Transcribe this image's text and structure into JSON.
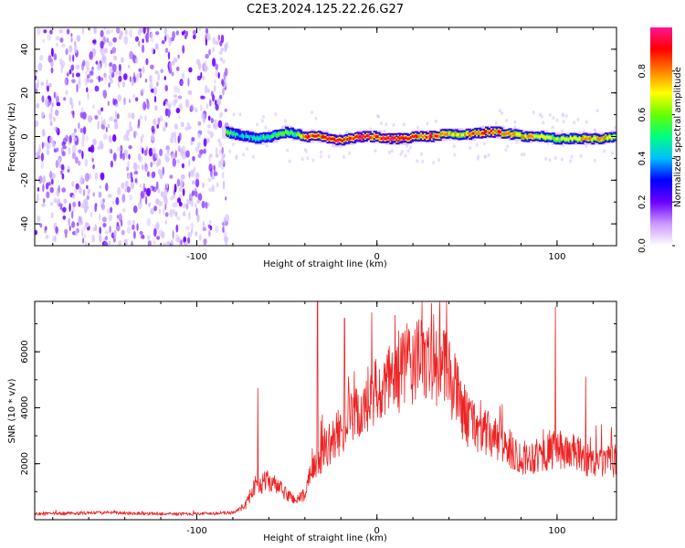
{
  "title": "C2E3.2024.125.22.26.G27",
  "chart_data": [
    {
      "type": "heatmap",
      "name": "spectrogram",
      "xlabel": "Height of straight line (km)",
      "ylabel": "Frequency (Hz)",
      "xlim": [
        -190,
        133
      ],
      "ylim": [
        -50,
        50
      ],
      "x_ticks": [
        -100,
        0,
        100
      ],
      "y_ticks": [
        -40,
        -20,
        0,
        20,
        40
      ],
      "grid": false,
      "colorbar": {
        "label": "Normalized spectral amplitude",
        "range": [
          0,
          1
        ],
        "ticks": [
          "0.0",
          "0.2",
          "0.4",
          "0.6",
          "0.8"
        ],
        "colors": [
          "#ffffff",
          "#cc99ff",
          "#6a00ff",
          "#0000ff",
          "#00bfff",
          "#00ff80",
          "#66ff00",
          "#ffff00",
          "#ff8000",
          "#ff0000",
          "#ff1493"
        ]
      },
      "noise_region_x": [
        -190,
        -83
      ],
      "signal_track": [
        {
          "x": -83,
          "y": 2,
          "amp": 0.55
        },
        {
          "x": -78,
          "y": 1,
          "amp": 0.5
        },
        {
          "x": -72,
          "y": 0,
          "amp": 0.45
        },
        {
          "x": -65,
          "y": -1,
          "amp": 0.5
        },
        {
          "x": -58,
          "y": 0,
          "amp": 0.55
        },
        {
          "x": -50,
          "y": 2,
          "amp": 0.6
        },
        {
          "x": -44,
          "y": 1,
          "amp": 0.55
        },
        {
          "x": -38,
          "y": 0,
          "amp": 0.9
        },
        {
          "x": -30,
          "y": 0,
          "amp": 0.85
        },
        {
          "x": -22,
          "y": -2,
          "amp": 0.95
        },
        {
          "x": -15,
          "y": -1,
          "amp": 0.85
        },
        {
          "x": -8,
          "y": 0,
          "amp": 0.95
        },
        {
          "x": 0,
          "y": 0,
          "amp": 0.9
        },
        {
          "x": 8,
          "y": -1,
          "amp": 0.95
        },
        {
          "x": 15,
          "y": -1,
          "amp": 0.9
        },
        {
          "x": 22,
          "y": 0,
          "amp": 0.85
        },
        {
          "x": 30,
          "y": 0,
          "amp": 0.9
        },
        {
          "x": 38,
          "y": 1,
          "amp": 0.8
        },
        {
          "x": 45,
          "y": 1,
          "amp": 0.7
        },
        {
          "x": 52,
          "y": 1,
          "amp": 0.8
        },
        {
          "x": 60,
          "y": 2,
          "amp": 0.85
        },
        {
          "x": 68,
          "y": 2,
          "amp": 0.85
        },
        {
          "x": 76,
          "y": 1,
          "amp": 0.75
        },
        {
          "x": 84,
          "y": 0,
          "amp": 0.8
        },
        {
          "x": 92,
          "y": 0,
          "amp": 0.7
        },
        {
          "x": 100,
          "y": -1,
          "amp": 0.65
        },
        {
          "x": 108,
          "y": -1,
          "amp": 0.7
        },
        {
          "x": 116,
          "y": -1,
          "amp": 0.75
        },
        {
          "x": 124,
          "y": -1,
          "amp": 0.8
        },
        {
          "x": 133,
          "y": 0,
          "amp": 0.7
        }
      ]
    },
    {
      "type": "line",
      "name": "snr",
      "xlabel": "Height of straight line (km)",
      "ylabel": "SNR (10 * v/v)",
      "xlim": [
        -190,
        133
      ],
      "ylim": [
        0,
        7800
      ],
      "x_ticks": [
        -100,
        0,
        100
      ],
      "y_ticks": [
        2000,
        4000,
        6000
      ],
      "grid": false,
      "color": "#ee2222",
      "trend": {
        "x": [
          -190,
          -150,
          -110,
          -80,
          -73,
          -68,
          -60,
          -50,
          -45,
          -40,
          -35,
          -30,
          -20,
          -10,
          0,
          10,
          20,
          30,
          40,
          50,
          60,
          70,
          80,
          90,
          100,
          110,
          120,
          133
        ],
        "y": [
          200,
          250,
          200,
          250,
          500,
          1200,
          1400,
          900,
          700,
          900,
          1800,
          2400,
          3200,
          3800,
          4200,
          5200,
          5600,
          5700,
          5200,
          3600,
          3100,
          2700,
          2200,
          2300,
          2500,
          2400,
          2000,
          2100
        ]
      },
      "peaks": [
        {
          "x": -66,
          "y": 4700
        },
        {
          "x": -33,
          "y": 7800
        },
        {
          "x": -18,
          "y": 7200
        },
        {
          "x": -3,
          "y": 7400
        },
        {
          "x": 10,
          "y": 7300
        },
        {
          "x": 30,
          "y": 6900
        },
        {
          "x": 99,
          "y": 7600
        },
        {
          "x": 116,
          "y": 5100
        }
      ]
    }
  ]
}
